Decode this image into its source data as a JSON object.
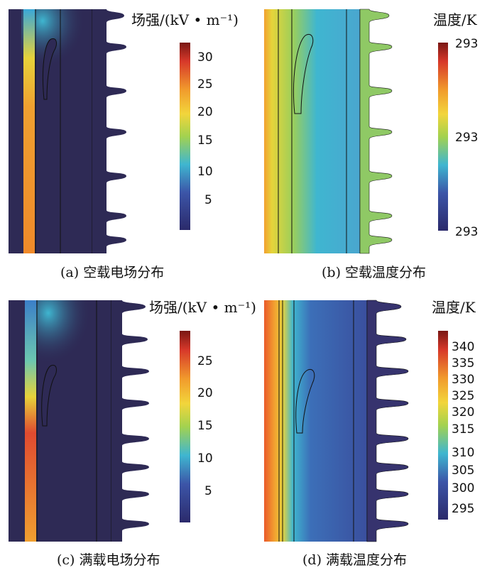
{
  "panels": {
    "a": {
      "caption": "(a)  空载电场分布",
      "colorbar_title": "场强/(kV • m⁻¹)",
      "ticks": [
        "30",
        "25",
        "20",
        "15",
        "10",
        "5"
      ]
    },
    "b": {
      "caption": "(b)  空载温度分布",
      "colorbar_title": "温度/K",
      "ticks": [
        "293",
        "293",
        "293"
      ]
    },
    "c": {
      "caption": "(c)  满载电场分布",
      "colorbar_title": "场强/(kV • m⁻¹)",
      "ticks": [
        "25",
        "20",
        "15",
        "10",
        "5"
      ]
    },
    "d": {
      "caption": "(d)  满载温度分布",
      "colorbar_title": "温度/K",
      "ticks": [
        "340",
        "335",
        "330",
        "325",
        "320",
        "315",
        "310",
        "305",
        "300",
        "295"
      ]
    }
  },
  "colors": {
    "background_dark": "#2e2a55",
    "colormap": [
      "#2b2a6b",
      "#3c55a8",
      "#3fb6d0",
      "#a3d24f",
      "#f2d53b",
      "#f19a2c",
      "#d7382a",
      "#7a1714"
    ]
  }
}
